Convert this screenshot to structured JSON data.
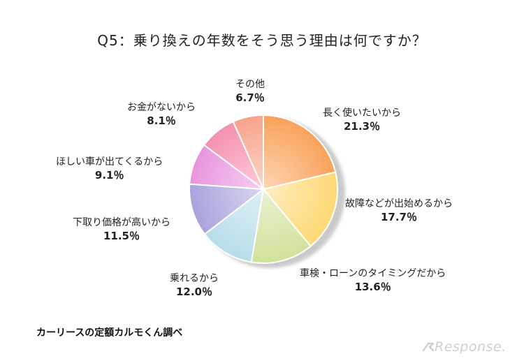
{
  "chart_data": {
    "type": "pie",
    "title": "Q5：乗り換えの年数をそう思う理由は何ですか？",
    "slices": [
      {
        "label": "長く使いたいから",
        "value": 21.3,
        "value_label": "21.3％",
        "color": "#F9A25A"
      },
      {
        "label": "故障などが出始めるから",
        "value": 17.7,
        "value_label": "17.7％",
        "color": "#FDD874"
      },
      {
        "label": "車検・ローンのタイミングだから",
        "value": 13.6,
        "value_label": "13.6％",
        "color": "#CFE29A"
      },
      {
        "label": "乗れるから",
        "value": 12.0,
        "value_label": "12.0％",
        "color": "#B7DDE8"
      },
      {
        "label": "下取り価格が高いから",
        "value": 11.5,
        "value_label": "11.5％",
        "color": "#A9A3DD"
      },
      {
        "label": "ほしい車が出てくるから",
        "value": 9.1,
        "value_label": "9.1％",
        "color": "#E895DE"
      },
      {
        "label": "お金がないから",
        "value": 8.1,
        "value_label": "8.1％",
        "color": "#F590AE"
      },
      {
        "label": "その他",
        "value": 6.7,
        "value_label": "6.7％",
        "color": "#F7A38A"
      }
    ],
    "source": "カーリースの定額カルモくん調べ"
  },
  "watermark": "Response."
}
